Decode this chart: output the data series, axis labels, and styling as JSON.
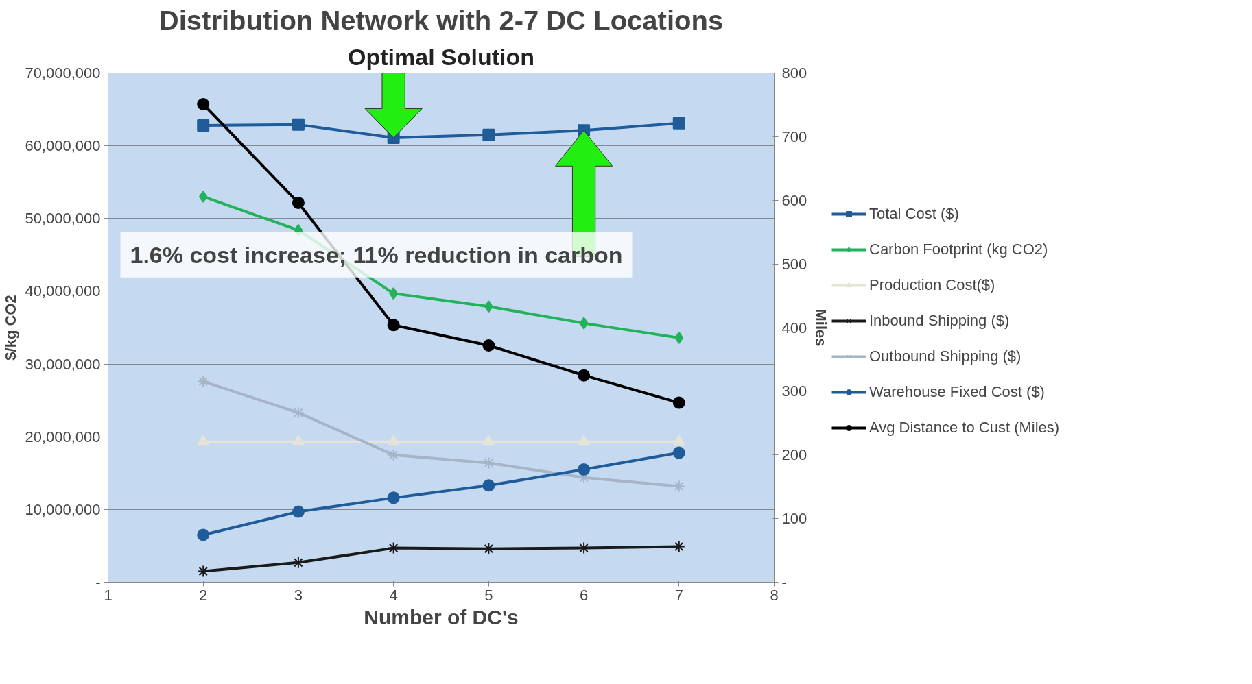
{
  "chart_data": {
    "type": "line",
    "title": "Distribution Network with 2-7 DC Locations",
    "xlabel": "Number of DC's",
    "ylabel": "$/kg CO2",
    "y2label": "Miles",
    "x": [
      2,
      3,
      4,
      5,
      6,
      7
    ],
    "series": [
      {
        "name": "Total Cost ($)",
        "color": "#1f5c99",
        "marker": "square",
        "values": [
          62800000,
          62900000,
          61100000,
          61500000,
          62100000,
          63100000
        ]
      },
      {
        "name": "Carbon Footprint (kg CO2)",
        "color": "#22b35a",
        "marker": "diamond",
        "values": [
          53000000,
          48400000,
          39700000,
          37900000,
          35600000,
          33600000
        ]
      },
      {
        "name": "Production Cost($)",
        "color": "#e6e4d6",
        "marker": "triangle",
        "values": [
          19300000,
          19300000,
          19300000,
          19300000,
          19300000,
          19300000
        ]
      },
      {
        "name": "Inbound Shipping ($)",
        "color": "#1a1a1a",
        "marker": "cross",
        "values": [
          1500000,
          2700000,
          4700000,
          4600000,
          4700000,
          4900000
        ]
      },
      {
        "name": "Outbound Shipping ($)",
        "color": "#a6b4c8",
        "marker": "cross",
        "values": [
          27600000,
          23300000,
          17500000,
          16400000,
          14400000,
          13200000
        ]
      },
      {
        "name": "Warehouse Fixed Cost ($)",
        "color": "#1f5c99",
        "marker": "circle",
        "values": [
          6500000,
          9700000,
          11600000,
          13300000,
          15500000,
          17800000
        ]
      },
      {
        "name": "Avg Distance to Cust (Miles)",
        "color": "#000000",
        "marker": "circle",
        "axis": "y2",
        "values": [
          751,
          596,
          404,
          372,
          325,
          282
        ]
      }
    ],
    "xlim": [
      1,
      8
    ],
    "xticks": [
      1,
      2,
      3,
      4,
      5,
      6,
      7,
      8
    ],
    "ylim": [
      0,
      70000000
    ],
    "yticks": [
      {
        "value": 0,
        "label": "-"
      },
      {
        "value": 10000000,
        "label": "10,000,000"
      },
      {
        "value": 20000000,
        "label": "20,000,000"
      },
      {
        "value": 30000000,
        "label": "30,000,000"
      },
      {
        "value": 40000000,
        "label": "40,000,000"
      },
      {
        "value": 50000000,
        "label": "50,000,000"
      },
      {
        "value": 60000000,
        "label": "60,000,000"
      },
      {
        "value": 70000000,
        "label": "70,000,000"
      }
    ],
    "y2lim": [
      0,
      800
    ],
    "y2ticks": [
      {
        "value": 0,
        "label": "-"
      },
      100,
      200,
      300,
      400,
      500,
      600,
      700,
      800
    ],
    "grid": "y",
    "legend": "right",
    "annotations": [
      {
        "text": "Optimal Solution",
        "x": 4,
        "y": 61100000
      },
      "1.6% cost increase; 11% reduction in carbon"
    ]
  }
}
